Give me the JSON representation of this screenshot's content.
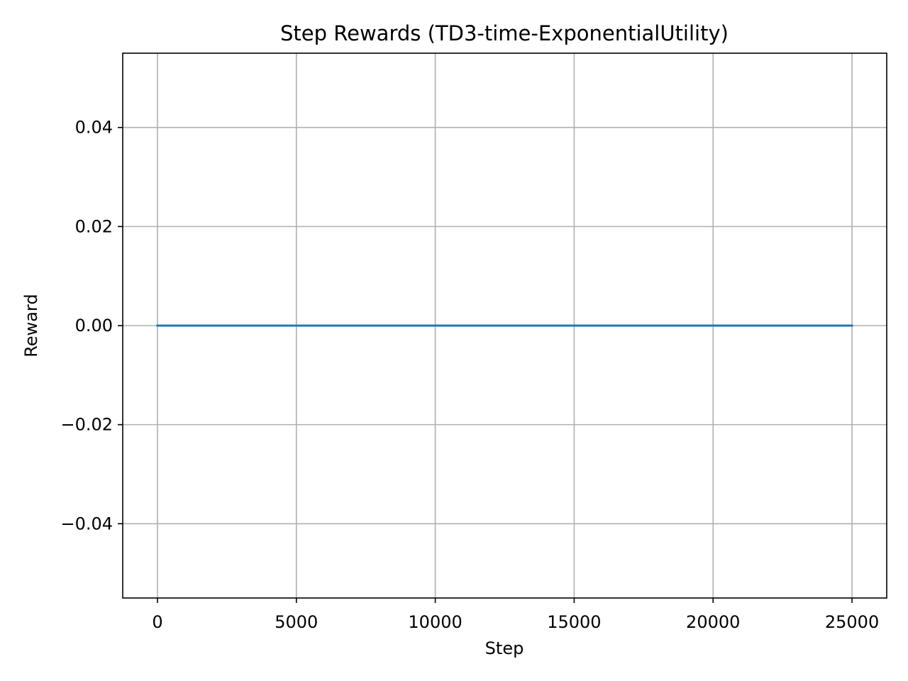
{
  "chart_data": {
    "type": "line",
    "title": "Step Rewards (TD3-time-ExponentialUtility)",
    "xlabel": "Step",
    "ylabel": "Reward",
    "xlim": [
      -1250,
      26250
    ],
    "ylim": [
      -0.055,
      0.055
    ],
    "x_ticks": [
      0,
      5000,
      10000,
      15000,
      20000,
      25000
    ],
    "x_tick_labels": [
      "0",
      "5000",
      "10000",
      "15000",
      "20000",
      "25000"
    ],
    "y_ticks": [
      -0.04,
      -0.02,
      0.0,
      0.02,
      0.04
    ],
    "y_tick_labels": [
      "−0.04",
      "−0.02",
      "0.00",
      "0.02",
      "0.04"
    ],
    "grid": true,
    "series": [
      {
        "color": "#1f77b4",
        "x": [
          0,
          25000
        ],
        "y": [
          0.0,
          0.0
        ]
      }
    ]
  }
}
